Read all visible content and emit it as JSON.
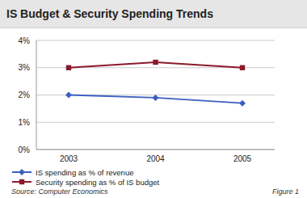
{
  "chart_data": {
    "type": "line",
    "title": "IS Budget & Security Spending Trends",
    "categories": [
      "2003",
      "2004",
      "2005"
    ],
    "series": [
      {
        "name": "IS spending as % of revenue",
        "color": "#3b5fc0",
        "marker": "diamond",
        "values": [
          2.0,
          1.9,
          1.7
        ]
      },
      {
        "name": "Security spending as % of IS budget",
        "color": "#8b1a2b",
        "marker": "square",
        "values": [
          3.0,
          3.2,
          3.0
        ]
      }
    ],
    "ylim": [
      0,
      4
    ],
    "yticks": [
      {
        "value": 0,
        "label": "0%"
      },
      {
        "value": 1,
        "label": "1%"
      },
      {
        "value": 2,
        "label": "2%"
      },
      {
        "value": 3,
        "label": "3%"
      },
      {
        "value": 4,
        "label": "4%"
      }
    ],
    "grid": true,
    "legend": "bottom",
    "annotations": [
      "Source: Computer Economics",
      "Figure 1"
    ]
  }
}
